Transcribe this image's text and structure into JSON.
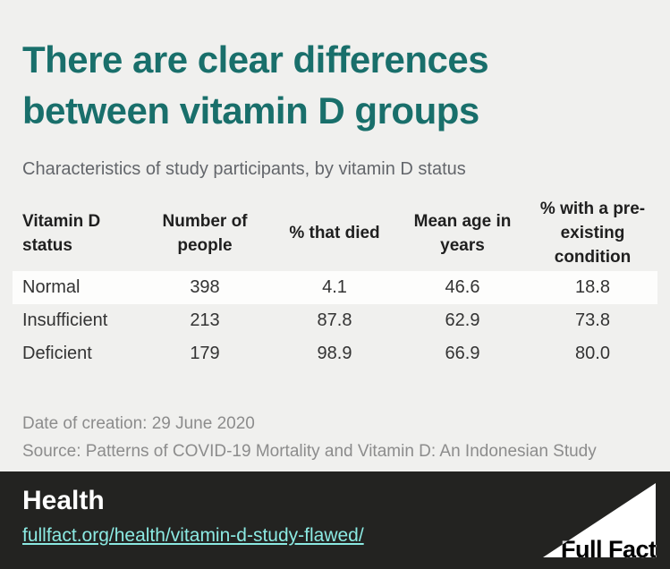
{
  "colors": {
    "background": "#f0f0ee",
    "title_teal": "#196f6b",
    "subtitle_gray": "#63666b",
    "row_highlight": "#fdfdfc",
    "meta_gray": "#8c8c8c",
    "footer_background": "#232321",
    "footer_link": "#8be9e2",
    "footer_text": "#ffffff"
  },
  "header": {
    "title": "There are clear differences between vitamin D groups",
    "subtitle": "Characteristics of study participants, by vitamin D status"
  },
  "table": {
    "columns": [
      "Vitamin D status",
      "Number of people",
      "% that died",
      "Mean age in years",
      "% with a pre-existing condition"
    ],
    "rows": [
      [
        "Normal",
        "398",
        "4.1",
        "46.6",
        "18.8"
      ],
      [
        "Insufficient",
        "213",
        "87.8",
        "62.9",
        "73.8"
      ],
      [
        "Deficient",
        "179",
        "98.9",
        "66.9",
        "80.0"
      ]
    ]
  },
  "meta": {
    "date_line": "Date of creation: 29 June 2020",
    "source_line": "Source: Patterns of COVID-19 Mortality and Vitamin D: An Indonesian Study"
  },
  "footer": {
    "category": "Health",
    "link": "fullfact.org/health/vitamin-d-study-flawed/",
    "logo_text": "Full Fact"
  },
  "chart_data": {
    "type": "table",
    "title": "There are clear differences between vitamin D groups",
    "subtitle": "Characteristics of study participants, by vitamin D status",
    "columns": [
      "Vitamin D status",
      "Number of people",
      "% that died",
      "Mean age in years",
      "% with a pre-existing condition"
    ],
    "rows": [
      {
        "status": "Normal",
        "number_of_people": 398,
        "pct_died": 4.1,
        "mean_age_years": 46.6,
        "pct_preexisting_condition": 18.8
      },
      {
        "status": "Insufficient",
        "number_of_people": 213,
        "pct_died": 87.8,
        "mean_age_years": 62.9,
        "pct_preexisting_condition": 73.8
      },
      {
        "status": "Deficient",
        "number_of_people": 179,
        "pct_died": 98.9,
        "mean_age_years": 66.9,
        "pct_preexisting_condition": 80.0
      }
    ],
    "notes": [
      "Date of creation: 29 June 2020",
      "Source: Patterns of COVID-19 Mortality and Vitamin D: An Indonesian Study"
    ]
  }
}
